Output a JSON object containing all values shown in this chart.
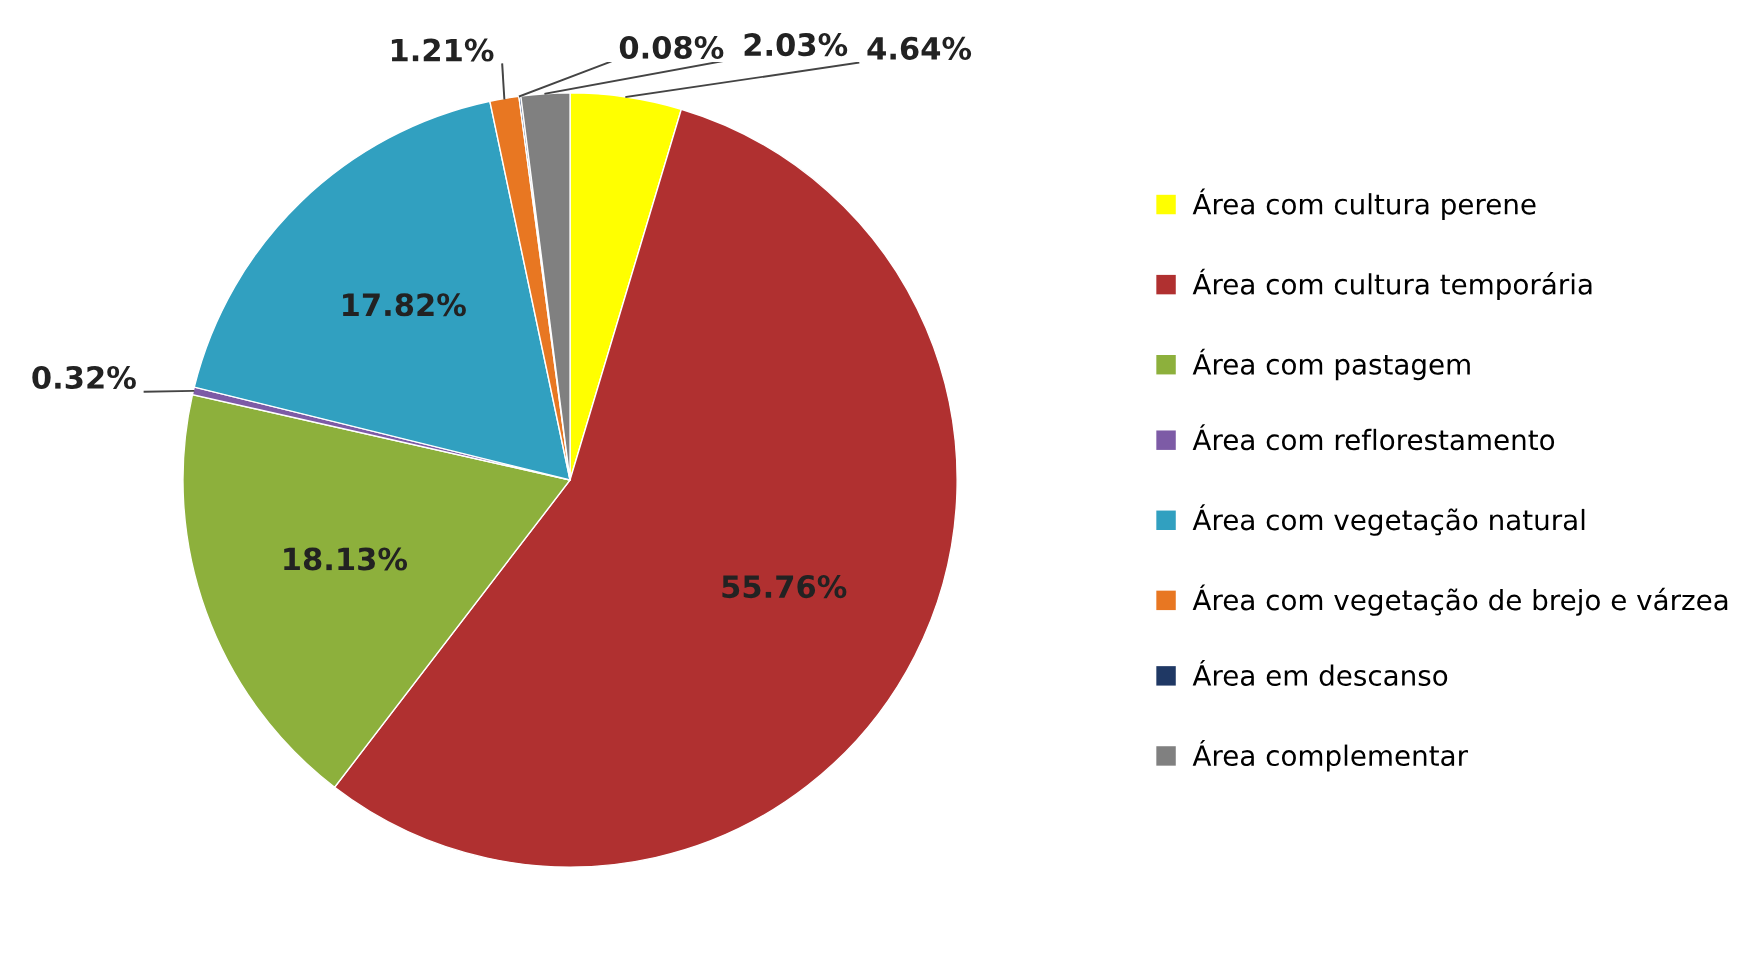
{
  "chart_data": {
    "type": "pie",
    "categories": [
      "Área com cultura perene",
      "Área com cultura temporária",
      "Área com pastagem",
      "Área com reflorestamento",
      "Área com vegetação natural",
      "Área com vegetação de brejo e várzea",
      "Área em descanso",
      "Área complementar"
    ],
    "values": [
      4.64,
      55.76,
      18.13,
      0.32,
      17.82,
      1.21,
      0.08,
      2.03
    ],
    "colors": [
      "#ffff00",
      "#b03030",
      "#8db03c",
      "#7d5ba6",
      "#31a0c0",
      "#e87722",
      "#1f3864",
      "#808080"
    ],
    "value_labels": [
      "4.64%",
      "55.76%",
      "18.13%",
      "0.32%",
      "17.82%",
      "1.21%",
      "0.08%",
      "2.03%"
    ],
    "legend": "right"
  }
}
